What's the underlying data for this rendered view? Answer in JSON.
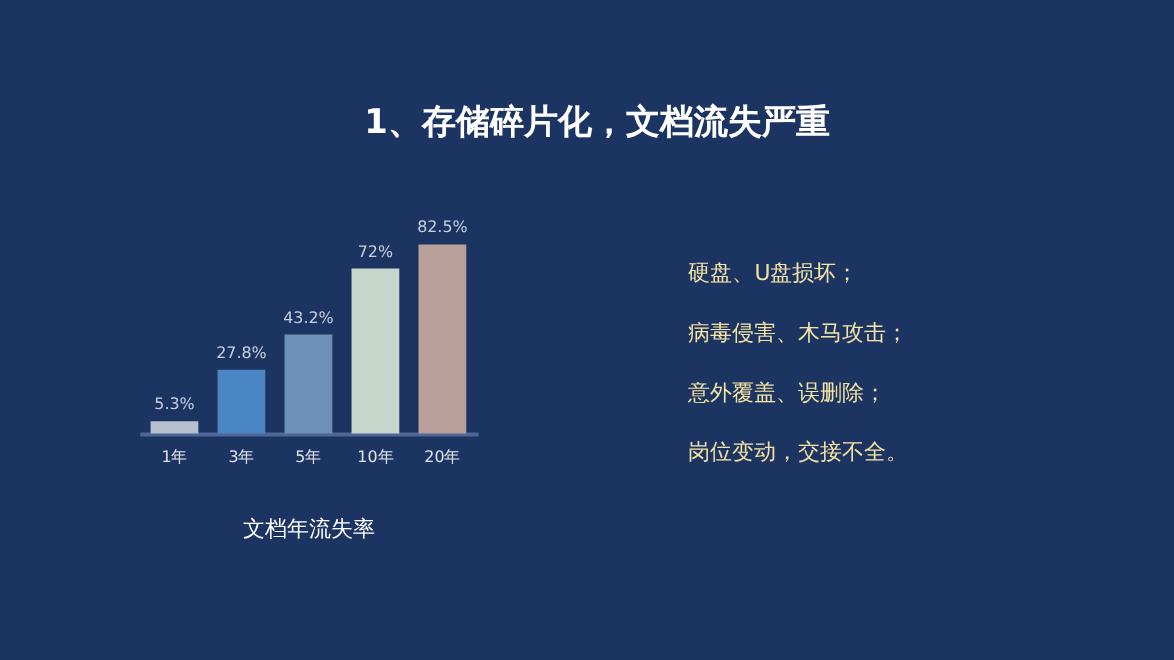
{
  "chart_data": {
    "type": "bar",
    "title": "1、存储碎片化，文档流失严重",
    "xlabel": "文档年流失率",
    "categories": [
      "1年",
      "3年",
      "5年",
      "10年",
      "20年"
    ],
    "values": [
      5.3,
      27.8,
      43.2,
      72,
      82.5
    ],
    "colors": [
      "#b8c0d0",
      "#4a86c4",
      "#6e8fb8",
      "#c7d7cc",
      "#b9a09a"
    ],
    "value_labels": [
      "5.3%",
      "27.8%",
      "43.2%",
      "72%",
      "82.5%"
    ],
    "grid": false,
    "annotations": [
      "硬盘、U盘损坏；",
      "病毒侵害、木马攻击；",
      "意外覆盖、误删除；",
      "岗位变动，交接不全。"
    ]
  }
}
